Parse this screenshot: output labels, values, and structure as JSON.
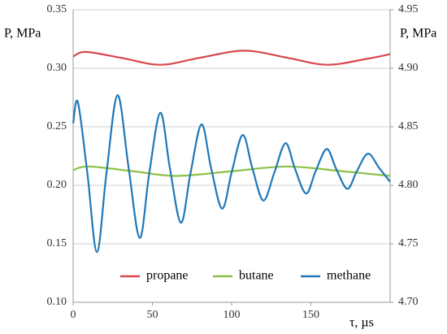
{
  "chart_data": {
    "type": "line",
    "ylabel": "P, MPa",
    "y2label": "P, MPa",
    "xlabel": "τ, µs",
    "xlim": [
      0,
      200
    ],
    "xticks": [
      0,
      50,
      100,
      150
    ],
    "ylim": [
      0.1,
      0.35
    ],
    "yticks": [
      {
        "value": 0.1,
        "label": "0.10"
      },
      {
        "value": 0.15,
        "label": "0.15"
      },
      {
        "value": 0.2,
        "label": "0.20"
      },
      {
        "value": 0.25,
        "label": "0.25"
      },
      {
        "value": 0.3,
        "label": "0.30"
      },
      {
        "value": 0.35,
        "label": "0.35"
      }
    ],
    "y2lim": [
      4.7,
      4.95
    ],
    "y2ticks": [
      {
        "value": 4.7,
        "label": "4.70"
      },
      {
        "value": 4.75,
        "label": "4.75"
      },
      {
        "value": 4.8,
        "label": "4.80"
      },
      {
        "value": 4.85,
        "label": "4.85"
      },
      {
        "value": 4.9,
        "label": "4.90"
      },
      {
        "value": 4.95,
        "label": "4.95"
      }
    ],
    "grid": true,
    "legend": "bottom",
    "series": [
      {
        "name": "propane",
        "color": "#d9474a",
        "x": [
          0,
          8,
          30,
          55,
          80,
          108,
          135,
          160,
          185,
          200
        ],
        "values": [
          0.31,
          0.314,
          0.309,
          0.303,
          0.309,
          0.315,
          0.309,
          0.303,
          0.308,
          0.312
        ]
      },
      {
        "name": "butane",
        "color": "#8dc145",
        "x": [
          0,
          10,
          38,
          65,
          100,
          135,
          170,
          200
        ],
        "values": [
          0.213,
          0.216,
          0.212,
          0.208,
          0.212,
          0.216,
          0.212,
          0.208
        ]
      },
      {
        "name": "methane",
        "color": "#1f78b8",
        "axis": "y2",
        "x": [
          0,
          3,
          9,
          15,
          21,
          28,
          35,
          42,
          48,
          55,
          61,
          68,
          74,
          81,
          87,
          94,
          100,
          107,
          113,
          120,
          127,
          134,
          140,
          147,
          153,
          160,
          166,
          173,
          179,
          186,
          193,
          200
        ],
        "values": [
          4.853,
          4.871,
          4.81,
          4.743,
          4.81,
          4.877,
          4.815,
          4.755,
          4.81,
          4.862,
          4.815,
          4.768,
          4.81,
          4.852,
          4.815,
          4.78,
          4.811,
          4.843,
          4.815,
          4.787,
          4.811,
          4.836,
          4.814,
          4.793,
          4.812,
          4.831,
          4.814,
          4.797,
          4.812,
          4.827,
          4.815,
          4.803
        ]
      }
    ]
  }
}
